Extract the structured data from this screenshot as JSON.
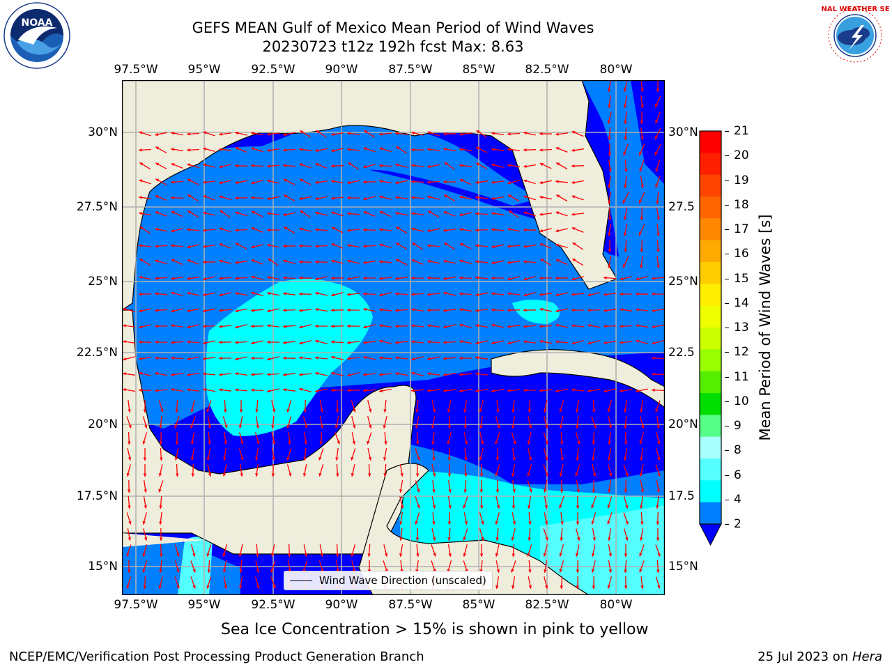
{
  "title_line1": "GEFS MEAN Gulf of Mexico Mean Period of Wind Waves",
  "title_line2": "20230723 t12z 192h fcst   Max: 8.63",
  "lon_labels": [
    "97.5°W",
    "95°W",
    "92.5°W",
    "90°W",
    "87.5°W",
    "85°W",
    "82.5°W",
    "80°W"
  ],
  "lat_labels_left": [
    "30°N",
    "27.5°N",
    "25°N",
    "22.5°N",
    "20°N",
    "17.5°N",
    "15°N"
  ],
  "lat_labels_right": [
    "30°N",
    "27.5",
    "25°N",
    "22.5",
    "20°N",
    "17.5",
    "15°N"
  ],
  "colorbar": {
    "label": "Mean Period of Wind Waves [s]",
    "ticks": [
      "21",
      "20",
      "19",
      "18",
      "17",
      "16",
      "15",
      "14",
      "13",
      "12",
      "11",
      "10",
      "9",
      "8",
      "6",
      "4",
      "2"
    ],
    "colors": [
      "#ff0000",
      "#ff2000",
      "#ff4400",
      "#ff6600",
      "#ff8800",
      "#ffaa00",
      "#ffcc00",
      "#ffee00",
      "#eeff00",
      "#ccff00",
      "#99ff00",
      "#55ee00",
      "#00dd00",
      "#55ff88",
      "#aaffff",
      "#55ffff",
      "#00ffff",
      "#0080ff"
    ],
    "extend_color": "#0000ff"
  },
  "legend_label": "Wind Wave Direction (unscaled)",
  "ice_note": "Sea Ice Concentration > 15% is shown in pink to yellow",
  "footer_left": "NCEP/EMC/Verification Post Processing Product Generation Branch",
  "footer_right_prefix": "25 Jul 2023 on ",
  "footer_right_host": "Hera",
  "logos": {
    "noaa_text": "NOAA",
    "nws_text": "NATIONAL WEATHER SERVICE"
  },
  "map_colors": {
    "land": "#efeddc",
    "blue_dark": "#0000ff",
    "blue_mid": "#0080ff",
    "cyan": "#00ffff",
    "cyan_light": "#55ffff",
    "arrow": "#ff0000",
    "grid": "#b0b0b0"
  }
}
